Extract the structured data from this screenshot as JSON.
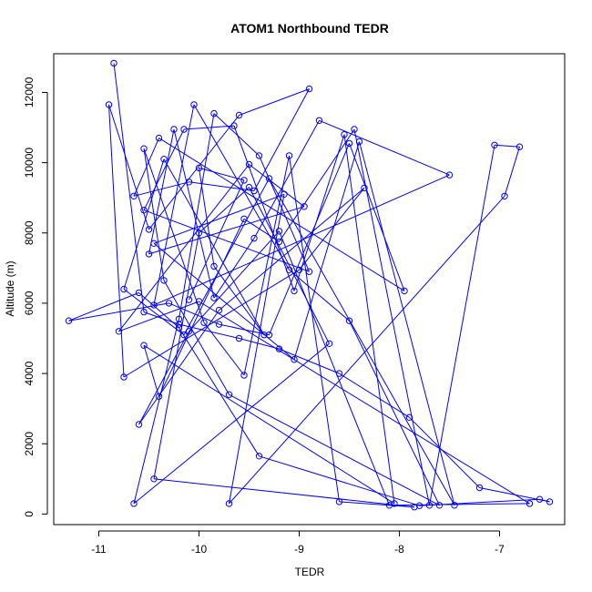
{
  "chart_data": {
    "type": "line",
    "title": "ATOM1 Northbound TEDR",
    "xlabel": "TEDR",
    "ylabel": "Altitude (m)",
    "xlim": [
      -11.45,
      -6.35
    ],
    "ylim": [
      -300,
      13100
    ],
    "xticks": [
      -11,
      -10,
      -9,
      -8,
      -7
    ],
    "yticks": [
      0,
      2000,
      4000,
      6000,
      8000,
      10000,
      12000
    ],
    "grid": false,
    "legend": "none",
    "colors": {
      "series": "#0000ff"
    },
    "series": [
      {
        "marker": "open-circle",
        "x": [
          -10.85,
          -10.55,
          -10.2,
          -9.6,
          -9.2,
          -8.6,
          -7.9,
          -7.2,
          -6.5,
          -6.6,
          -7.8,
          -9.4,
          -10.2,
          -10.6,
          -11.3,
          -10.3,
          -9.8,
          -9.3,
          -8.5,
          -7.95,
          -10.4,
          -10.65,
          -10.1,
          -9.45,
          -8.9,
          -9.6,
          -10.5,
          -10.9,
          -10.75,
          -9.0,
          -8.35,
          -9.8,
          -10.6,
          -10.1,
          -9.2,
          -8.1,
          -6.7,
          -10.0,
          -10.8,
          -9.5,
          -8.95,
          -10.5,
          -10.25,
          -9.85,
          -9.45,
          -8.8,
          -7.5,
          -10.45,
          -10.05,
          -9.1,
          -8.5,
          -7.6,
          -9.7,
          -10.35,
          -10.55,
          -9.95,
          -9.55,
          -9.1,
          -8.6,
          -7.85,
          -10.45,
          -10.0,
          -9.5,
          -8.7,
          -10.65,
          -10.2,
          -9.85,
          -9.4,
          -8.9,
          -10.55,
          -10.15,
          -9.65,
          -9.05,
          -8.55,
          -8.05,
          -10.55,
          -10.4,
          -9.55,
          -9.2,
          -8.45,
          -7.7,
          -7.05,
          -6.8,
          -6.95,
          -9.7,
          -9.15,
          -10.45,
          -9.05,
          -8.4,
          -7.45,
          -9.3,
          -10.15,
          -10.75,
          -10.35,
          -9.35,
          -9.85,
          -10.0,
          -9.55,
          -10.1
        ],
        "y": [
          12830,
          5750,
          5400,
          5000,
          4700,
          4000,
          2750,
          750,
          350,
          420,
          240,
          1650,
          5300,
          6300,
          5500,
          6000,
          5400,
          5100,
          10550,
          6350,
          10700,
          9050,
          9450,
          9200,
          12100,
          11350,
          8100,
          11650,
          3900,
          6950,
          9280,
          5800,
          2550,
          5200,
          8050,
          250,
          300,
          6050,
          5200,
          9950,
          8750,
          7400,
          10950,
          6150,
          7850,
          11200,
          9650,
          5950,
          11650,
          6950,
          5500,
          250,
          3400,
          6650,
          10400,
          5450,
          3950,
          10200,
          350,
          200,
          1000,
          8000,
          9300,
          4850,
          300,
          5550,
          11400,
          10200,
          6900,
          8650,
          10950,
          11050,
          6350,
          10800,
          300,
          4800,
          3350,
          8400,
          7750,
          10950,
          250,
          10500,
          10450,
          9050,
          300,
          9100,
          7700,
          4400,
          10600,
          250,
          9550,
          5100,
          6400,
          10100,
          5100,
          7050,
          9850,
          9500,
          6100
        ]
      }
    ]
  }
}
